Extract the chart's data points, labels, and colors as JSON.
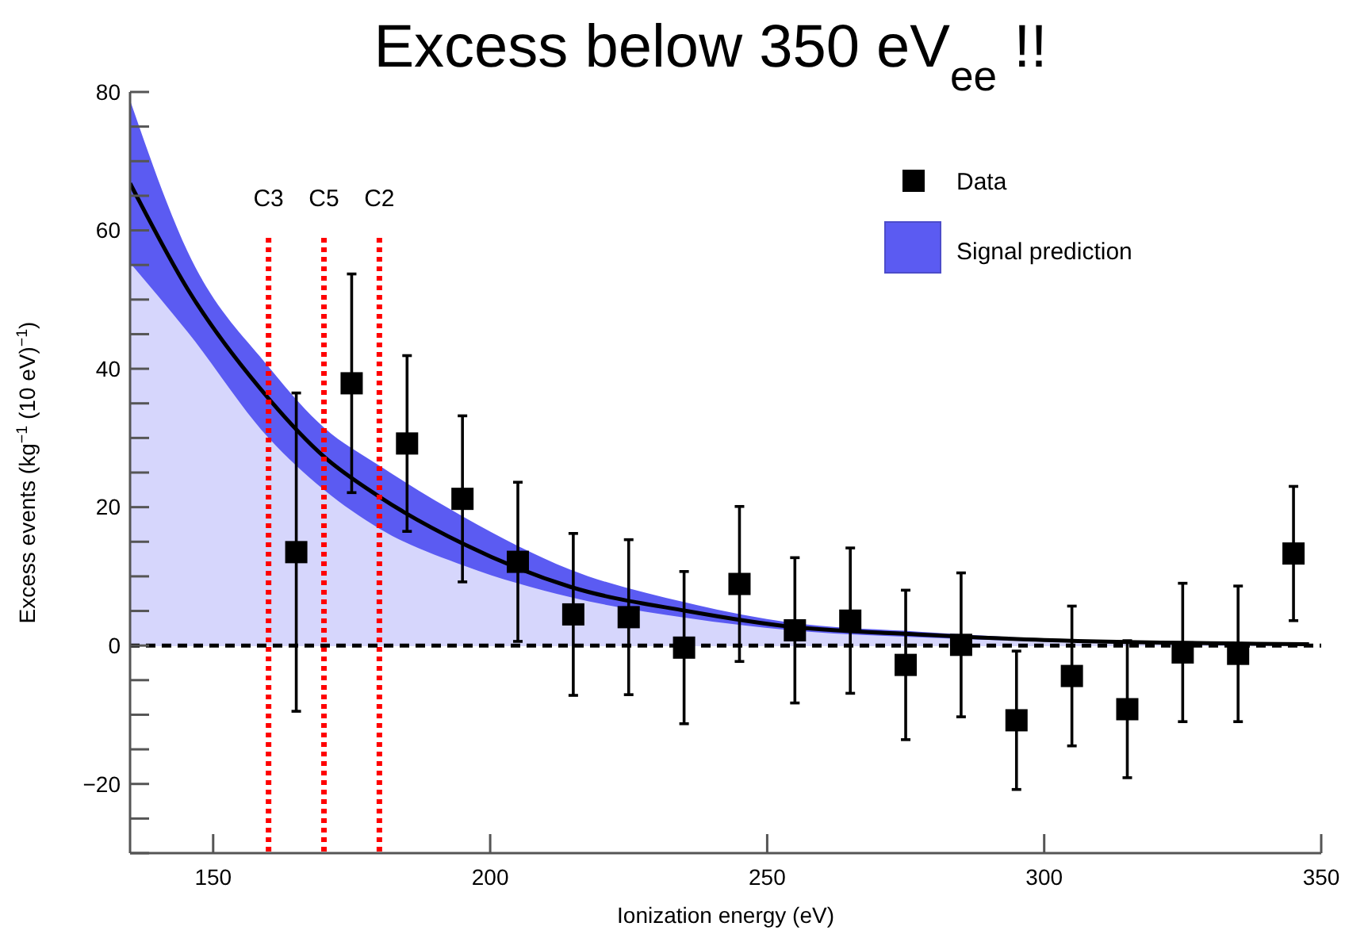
{
  "chart_data": {
    "type": "scatter",
    "title": "Excess below 350 eV$_{ee}$ !!",
    "xlabel": "Ionization energy (eV)",
    "ylabel": "Excess events (kg$^{−1}$ (10 eV)$^{−1}$)",
    "xlim": [
      135,
      350
    ],
    "xticks": [
      150,
      200,
      250,
      300,
      350
    ],
    "ylim": [
      -30,
      80
    ],
    "yticks": [
      {
        "value": -30,
        "label": null
      },
      {
        "value": -25,
        "label": null
      },
      -20,
      {
        "value": -15,
        "label": null
      },
      {
        "value": -10,
        "label": null
      },
      {
        "value": -5,
        "label": null
      },
      0,
      {
        "value": 5,
        "label": null
      },
      {
        "value": 10,
        "label": null
      },
      {
        "value": 15,
        "label": null
      },
      20,
      {
        "value": 25,
        "label": null
      },
      {
        "value": 30,
        "label": null
      },
      {
        "value": 35,
        "label": null
      },
      40,
      {
        "value": 45,
        "label": null
      },
      {
        "value": 50,
        "label": null
      },
      {
        "value": 55,
        "label": null
      },
      60,
      {
        "value": 65,
        "label": null
      },
      {
        "value": 70,
        "label": null
      },
      {
        "value": 75,
        "label": null
      },
      80
    ],
    "grid": false,
    "legend": "top right",
    "series": [
      {
        "name": "Signal prediction",
        "type": "area",
        "color": "#5b5bf2",
        "x": [
          135,
          145.4,
          160,
          170,
          180,
          195.4,
          214.4,
          235.4,
          254.4,
          277.3,
          300,
          347.8
        ],
        "values": [
          78.8,
          56.9,
          40.3,
          31.5,
          26,
          18.5,
          11,
          6.2,
          3.3,
          2,
          1,
          0.3
        ]
      },
      {
        "type": "area",
        "color": "#d6d6fc",
        "x": [
          135,
          145.4,
          160,
          170,
          180,
          195.4,
          214.4,
          235.4,
          254.4,
          277.3,
          300,
          347.8
        ],
        "values": [
          55.3,
          45.3,
          30,
          22.5,
          16.9,
          11.5,
          7,
          4,
          2.2,
          1.2,
          0.6,
          0.1
        ]
      },
      {
        "type": "line",
        "color": "#000000",
        "line_style": "solid",
        "x": [
          135,
          145.4,
          160,
          170,
          180,
          195.4,
          214.4,
          235.4,
          254.4,
          277.3,
          300,
          347.8
        ],
        "values": [
          66.8,
          51.5,
          35.7,
          27.3,
          21.5,
          14.6,
          8.5,
          5.0,
          2.7,
          1.6,
          0.8,
          0.2
        ]
      },
      {
        "name": "Data",
        "color": "#000000",
        "marker": "square",
        "x": [
          165,
          175,
          185,
          195,
          205,
          215,
          225,
          235,
          245,
          255,
          265,
          275,
          285,
          295,
          305,
          315,
          325,
          335,
          345
        ],
        "values": [
          13.5,
          37.9,
          29.2,
          21.2,
          12.1,
          4.5,
          4.1,
          -0.3,
          8.9,
          2.2,
          3.6,
          -2.8,
          0.1,
          -10.8,
          -4.4,
          -9.2,
          -1,
          -1.2,
          13.3
        ],
        "errors": [
          23,
          15.8,
          12.7,
          12,
          11.5,
          11.7,
          11.2,
          11,
          11.2,
          10.5,
          10.5,
          10.8,
          10.4,
          10,
          10.1,
          9.9,
          10,
          9.8,
          9.7
        ]
      }
    ],
    "ref_lines": [
      {
        "axis": "x",
        "value": 160,
        "label": "C3",
        "color": "#ff0000",
        "line_style": "dotted"
      },
      {
        "axis": "x",
        "value": 170,
        "label": "C5",
        "color": "#ff0000",
        "line_style": "dotted"
      },
      {
        "axis": "x",
        "value": 180,
        "label": "C2",
        "color": "#ff0000",
        "line_style": "dotted"
      },
      {
        "axis": "y",
        "value": 0,
        "label": null,
        "color": "#000000",
        "line_style": "dashed"
      }
    ]
  }
}
